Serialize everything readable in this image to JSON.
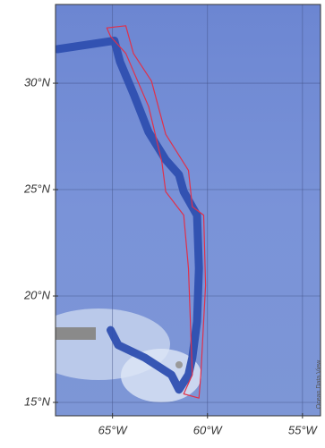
{
  "chart_data": {
    "type": "map",
    "xlim": [
      -68,
      -54.05
    ],
    "ylim": [
      14.37,
      33.7
    ],
    "xticks": [
      {
        "value": -65,
        "label": "65°W"
      },
      {
        "value": -60,
        "label": "60°W"
      },
      {
        "value": -55,
        "label": "55°W"
      }
    ],
    "yticks": [
      {
        "value": 15,
        "label": "15°N"
      },
      {
        "value": 20,
        "label": "20°N"
      },
      {
        "value": 25,
        "label": "25°N"
      },
      {
        "value": 30,
        "label": "30°N"
      }
    ],
    "grid": true,
    "credit": "Ocean Data View",
    "tracks": [
      {
        "color": "#e0304a",
        "width": 1.2,
        "x": [
          -65.3,
          -64.3,
          -63.9,
          -62.95,
          -62.2,
          -61.0,
          -60.8,
          -60.2,
          -60.1,
          -60.35,
          -60.45,
          -61.25,
          -60.8,
          -61.0,
          -61.25,
          -62.2,
          -62.4,
          -63.1,
          -64.3,
          -65.1,
          -65.3
        ],
        "y": [
          32.6,
          32.7,
          31.4,
          30.1,
          27.6,
          25.9,
          24.2,
          23.8,
          20.5,
          16.3,
          15.2,
          15.4,
          16.3,
          21.3,
          23.8,
          24.9,
          26.3,
          28.9,
          31.4,
          32.2,
          32.6
        ]
      },
      {
        "color": "#2e4fb0",
        "width": 9,
        "x": [
          -67.9,
          -64.9,
          -64.6,
          -63.85,
          -63.1,
          -62.2,
          -61.5,
          -61.25,
          -60.55,
          -60.45,
          -60.55,
          -60.8,
          -61.0,
          -61.5,
          -61.9,
          -63.3,
          -64.7,
          -65.1
        ],
        "y": [
          31.6,
          32.0,
          31.0,
          29.4,
          27.7,
          26.4,
          25.7,
          24.9,
          23.8,
          21.3,
          18.8,
          17.1,
          16.3,
          15.6,
          16.3,
          17.1,
          17.7,
          18.4
        ]
      }
    ]
  }
}
